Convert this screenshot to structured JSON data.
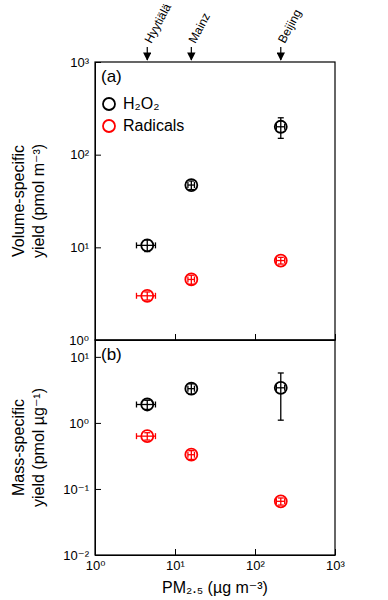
{
  "chart_data": [
    {
      "type": "scatter",
      "title": "(a)",
      "ylabel": [
        "Volume-specific",
        "yield (pmol m⁻³)"
      ],
      "log": true,
      "legend": "upper left",
      "tick_labels": "y",
      "marker": "circle",
      "x": [
        4.5,
        16,
        210
      ],
      "x_errors": [
        1.2,
        1.5,
        25
      ],
      "xlim": [
        1,
        1000
      ],
      "xticks": [
        1,
        10,
        100,
        1000
      ],
      "ylim": [
        1,
        1000
      ],
      "yticks": [
        {
          "value": 1,
          "label": "10⁰"
        },
        {
          "value": 10,
          "label": "10¹"
        },
        {
          "value": 100,
          "label": "10²"
        },
        {
          "value": 1000,
          "label": "10³"
        }
      ],
      "annotations": [
        {
          "text": "Hyytiälä",
          "x": 4.5
        },
        {
          "text": "Mainz",
          "x": 16
        },
        {
          "text": "Beijing",
          "x": 210
        }
      ],
      "series": [
        {
          "name": "H₂O₂",
          "color": "#000000",
          "values": [
            10.5,
            47,
            200
          ],
          "errors": [
            1.5,
            5,
            50
          ]
        },
        {
          "name": "Radicals",
          "color": "#ff0000",
          "values": [
            3,
            4.5,
            7.2
          ],
          "errors": [
            0.3,
            0.5,
            0.6
          ]
        }
      ]
    },
    {
      "type": "scatter",
      "title": "(b)",
      "ylabel": [
        "Mass-specific",
        "yield (pmol µg⁻¹)"
      ],
      "xlabel": "PM₂.₅ (µg m⁻³)",
      "log": true,
      "marker": "circle",
      "x": [
        4.5,
        16,
        210
      ],
      "x_errors": [
        1.2,
        1.5,
        25
      ],
      "xlim": [
        1,
        1000
      ],
      "xticks": [
        {
          "value": 1,
          "label": "10⁰"
        },
        {
          "value": 10,
          "label": "10¹"
        },
        {
          "value": 100,
          "label": "10²"
        },
        {
          "value": 1000,
          "label": "10³"
        }
      ],
      "ylim": [
        0.01,
        18
      ],
      "yticks": [
        {
          "value": 0.01,
          "label": "10⁻²"
        },
        {
          "value": 0.1,
          "label": "10⁻¹"
        },
        {
          "value": 1,
          "label": "10⁰"
        },
        {
          "value": 10,
          "label": "10¹"
        }
      ],
      "series": [
        {
          "name": "H₂O₂",
          "color": "#000000",
          "values": [
            1.9,
            3.3,
            3.4
          ],
          "errors": [
            0.3,
            0.6,
            2.3
          ]
        },
        {
          "name": "Radicals",
          "color": "#ff0000",
          "values": [
            0.63,
            0.33,
            0.065
          ],
          "errors": [
            0.08,
            0.05,
            0.008
          ]
        }
      ]
    }
  ]
}
